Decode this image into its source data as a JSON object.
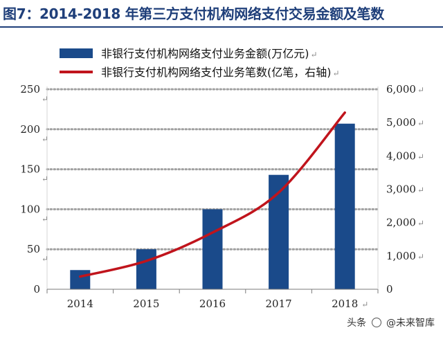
{
  "figure": {
    "title": "图7：2014-2018 年第三方支付机构网络支付交易金额及笔数"
  },
  "watermark": {
    "prefix": "头条",
    "handle": "@未来智库"
  },
  "chart_data": {
    "type": "bar+line",
    "title": "图7：2014-2018 年第三方支付机构网络支付交易金额及笔数",
    "categories": [
      "2014",
      "2015",
      "2016",
      "2017",
      "2018"
    ],
    "series": [
      {
        "name": "非银行支付机构网络支付业务金额(万亿元)",
        "type": "bar",
        "axis": "left",
        "color": "#1a4a8a",
        "values": [
          24,
          50,
          100,
          143,
          207
        ]
      },
      {
        "name": "非银行支付机构网络支付业务笔数(亿笔，右轴)",
        "type": "line",
        "axis": "right",
        "color": "#c0141c",
        "values": [
          380,
          850,
          1700,
          2900,
          5300
        ]
      }
    ],
    "left_axis": {
      "ylim": [
        0,
        250
      ],
      "ticks": [
        0,
        50,
        100,
        150,
        200,
        250
      ],
      "tick_labels": [
        "0",
        "50",
        "100",
        "150",
        "200",
        "250"
      ]
    },
    "right_axis": {
      "ylim": [
        0,
        6000
      ],
      "ticks": [
        0,
        1000,
        2000,
        3000,
        4000,
        5000,
        6000
      ],
      "tick_labels": [
        "0",
        "1,000",
        "2,000",
        "3,000",
        "4,000",
        "5,000",
        "6,000"
      ]
    },
    "grid": "horizontal-dotted",
    "legend_position": "top"
  }
}
